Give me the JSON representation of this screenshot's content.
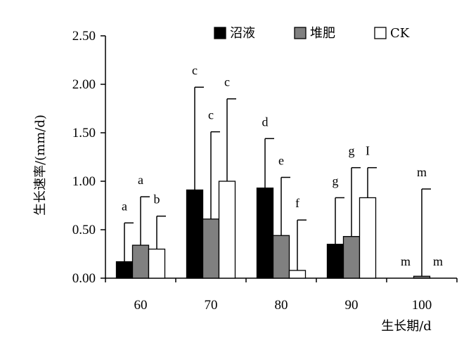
{
  "chart_data": {
    "type": "bar",
    "title": "",
    "xlabel": "生长期/d",
    "ylabel": "生长速率/(mm/d)",
    "ylim": [
      0,
      2.5
    ],
    "yticks": [
      "0.00",
      "0.50",
      "1.00",
      "1.50",
      "2.00",
      "2.50"
    ],
    "categories": [
      "60",
      "70",
      "80",
      "90",
      "100"
    ],
    "legend_position": "top-right",
    "grid": false,
    "series": [
      {
        "name": "沼液",
        "color": "#000000",
        "values": [
          0.17,
          0.91,
          0.93,
          0.35,
          0.0
        ],
        "error": [
          0.4,
          1.06,
          0.51,
          0.48,
          0.0
        ],
        "labels": [
          "a",
          "c",
          "d",
          "g",
          "m"
        ]
      },
      {
        "name": "堆肥",
        "color": "#808080",
        "values": [
          0.34,
          0.61,
          0.44,
          0.43,
          0.02
        ],
        "error": [
          0.5,
          0.9,
          0.6,
          0.71,
          0.9
        ],
        "labels": [
          "a",
          "c",
          "e",
          "g",
          "m"
        ]
      },
      {
        "name": "CK",
        "color": "#ffffff",
        "values": [
          0.3,
          1.0,
          0.08,
          0.83,
          0.0
        ],
        "error": [
          0.34,
          0.85,
          0.52,
          0.31,
          0.0
        ],
        "labels": [
          "b",
          "c",
          "f",
          "I",
          "m"
        ]
      }
    ]
  }
}
